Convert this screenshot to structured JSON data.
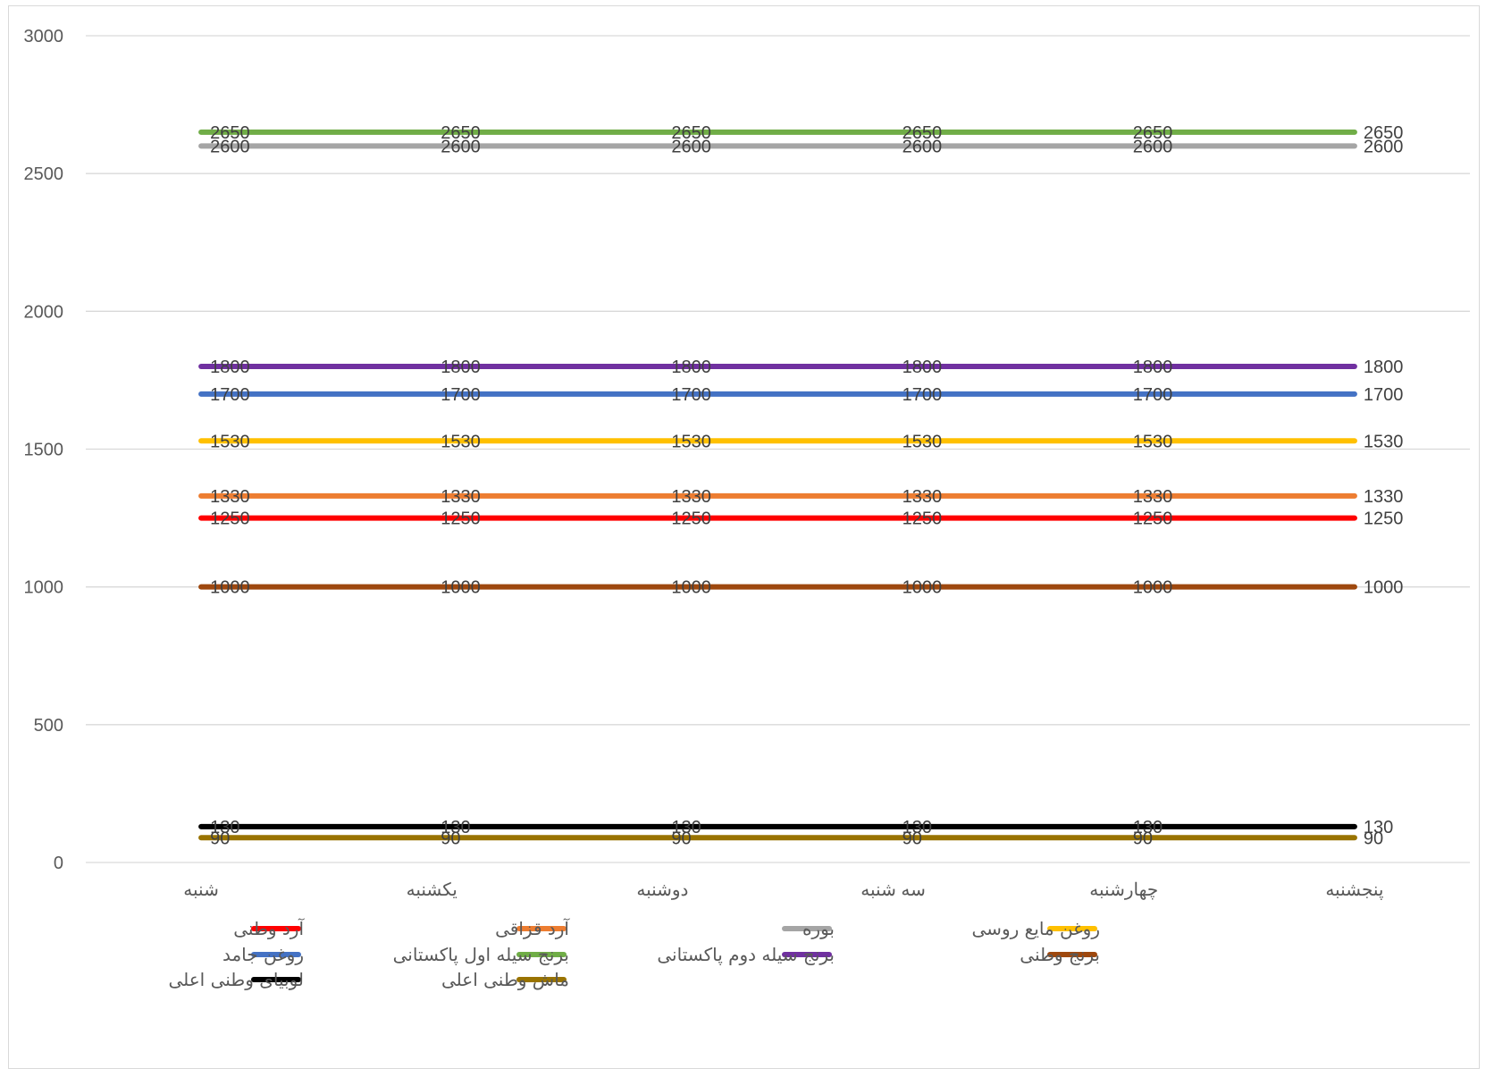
{
  "chart_data": {
    "type": "line",
    "title": "",
    "xlabel": "",
    "ylabel": "",
    "categories": [
      "شنبه",
      "یکشنبه",
      "دوشنبه",
      "سه شنبه",
      "چهارشنبه",
      "پنجشنبه"
    ],
    "ylim": [
      0,
      3000
    ],
    "yticks": [
      0,
      500,
      1000,
      1500,
      2000,
      2500,
      3000
    ],
    "grid": true,
    "legend": "bottom",
    "data_labels": true,
    "series": [
      {
        "name": "آرد وطنی",
        "color": "#FF0000",
        "values": [
          1250,
          1250,
          1250,
          1250,
          1250,
          1250
        ]
      },
      {
        "name": "آرد قزاقی",
        "color": "#ED7D31",
        "values": [
          1330,
          1330,
          1330,
          1330,
          1330,
          1330
        ]
      },
      {
        "name": "بوره",
        "color": "#A5A5A5",
        "values": [
          2600,
          2600,
          2600,
          2600,
          2600,
          2600
        ]
      },
      {
        "name": "روغن مایع روسی",
        "color": "#FFC000",
        "values": [
          1530,
          1530,
          1530,
          1530,
          1530,
          1530
        ]
      },
      {
        "name": "روغن جامد",
        "color": "#4472C4",
        "values": [
          1700,
          1700,
          1700,
          1700,
          1700,
          1700
        ]
      },
      {
        "name": "برنج سیله اول پاکستانی",
        "color": "#70AD47",
        "values": [
          2650,
          2650,
          2650,
          2650,
          2650,
          2650
        ]
      },
      {
        "name": "برنج سیله دوم پاکستانی",
        "color": "#7030A0",
        "values": [
          1800,
          1800,
          1800,
          1800,
          1800,
          1800
        ]
      },
      {
        "name": "برنج وطنی",
        "color": "#9E480E",
        "values": [
          1000,
          1000,
          1000,
          1000,
          1000,
          1000
        ]
      },
      {
        "name": "لوبیای وطنی اعلی",
        "color": "#000000",
        "values": [
          130,
          130,
          130,
          130,
          130,
          130
        ]
      },
      {
        "name": "ماش وطنی اعلی",
        "color": "#997300",
        "values": [
          90,
          90,
          90,
          90,
          90,
          90
        ]
      }
    ]
  }
}
